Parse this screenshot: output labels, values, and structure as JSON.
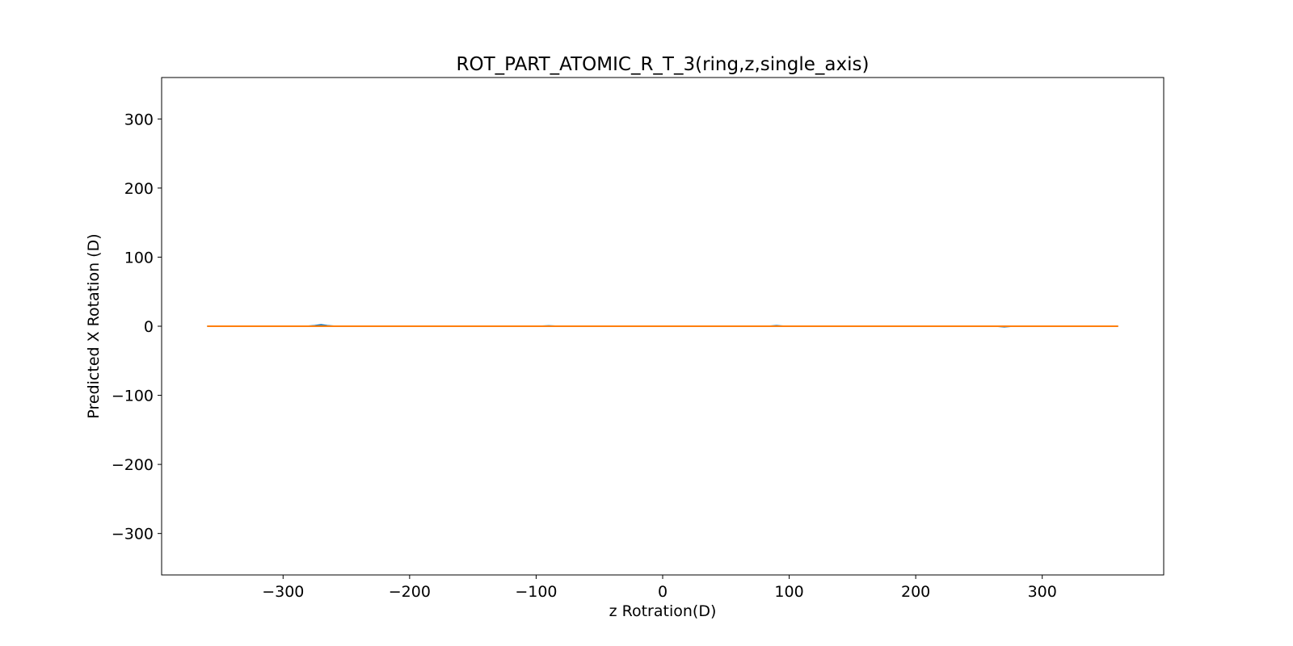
{
  "chart_data": {
    "type": "line",
    "title": "ROT_PART_ATOMIC_R_T_3(ring,z,single_axis)",
    "xlabel": "z Rotration(D)",
    "ylabel": "Predicted X Rotation (D)",
    "xlim": [
      -396,
      396
    ],
    "ylim": [
      -360,
      360
    ],
    "xticks": [
      -300,
      -200,
      -100,
      0,
      100,
      200,
      300
    ],
    "yticks": [
      -300,
      -200,
      -100,
      0,
      100,
      200,
      300
    ],
    "xtick_labels": [
      "−300",
      "−200",
      "−100",
      "0",
      "100",
      "200",
      "300"
    ],
    "ytick_labels": [
      "−300",
      "−200",
      "−100",
      "0",
      "100",
      "200",
      "300"
    ],
    "grid": false,
    "legend": "none",
    "series": [
      {
        "color": "#1f77b4",
        "x": [
          -360,
          -280,
          -275,
          -270,
          -265,
          -260,
          -95,
          -90,
          -85,
          85,
          90,
          95,
          265,
          270,
          275,
          360
        ],
        "y": [
          0,
          0,
          0.8,
          2.0,
          0.8,
          0,
          0,
          0.4,
          0,
          0,
          0.7,
          0,
          0,
          -0.7,
          0,
          0
        ]
      },
      {
        "color": "#ff7f0e",
        "x": [
          -360,
          360
        ],
        "y": [
          0,
          0
        ]
      }
    ]
  }
}
